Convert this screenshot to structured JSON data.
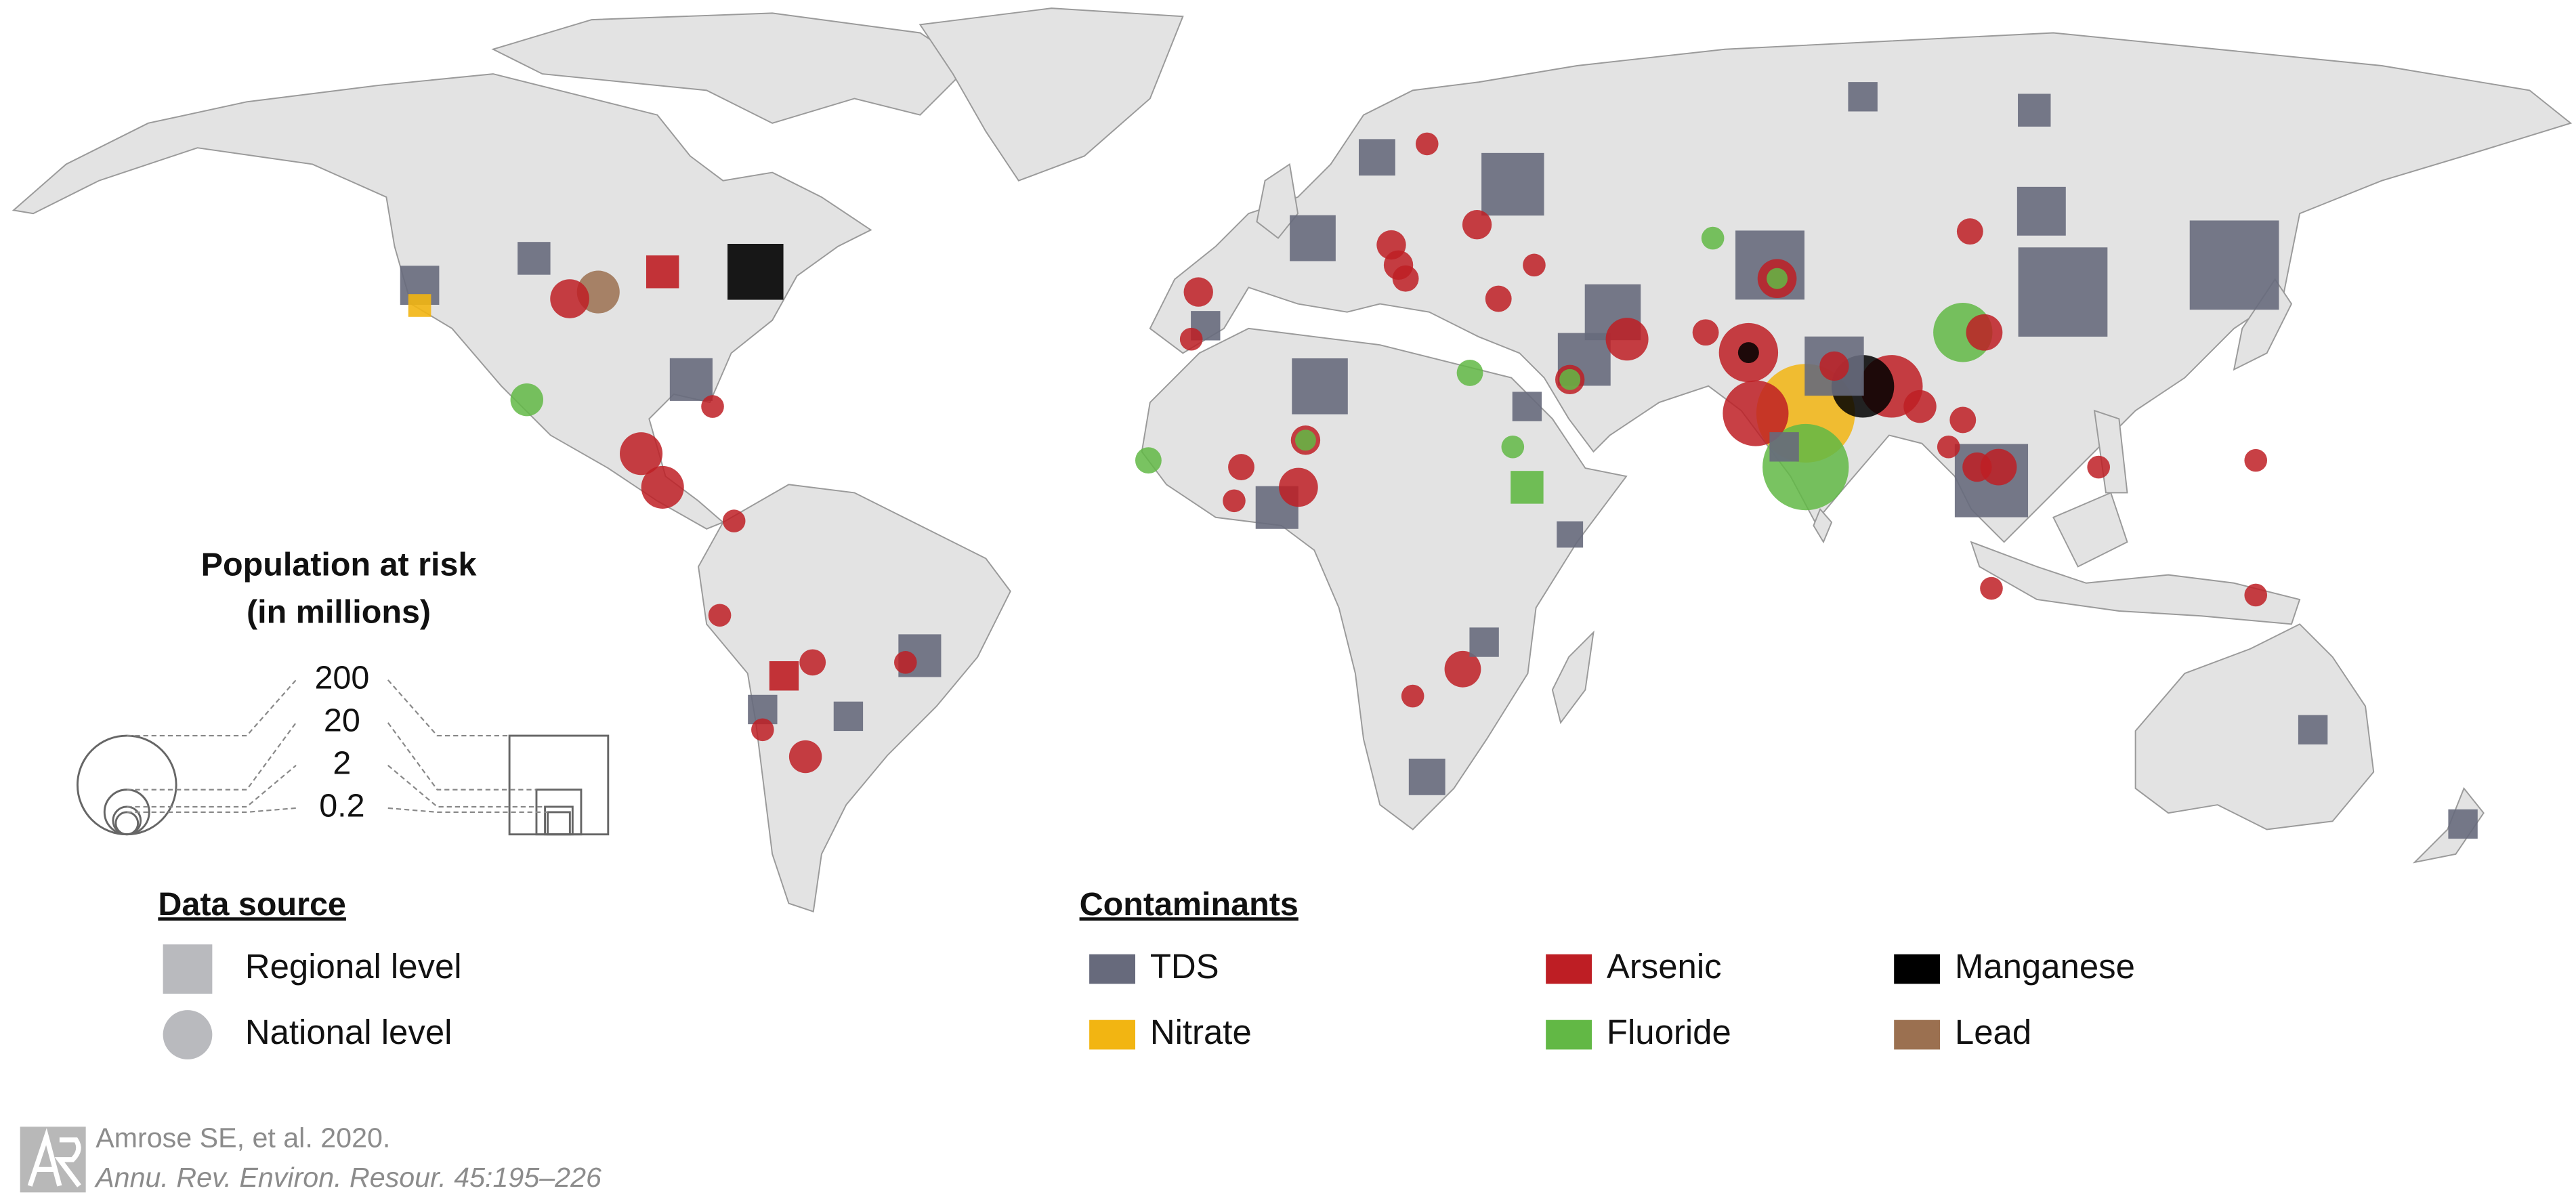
{
  "legend_size": {
    "title": [
      "Population at risk",
      "(in millions)"
    ],
    "values": [
      200,
      20,
      2,
      0.2
    ]
  },
  "data_source": {
    "title": "Data source",
    "items": [
      {
        "label": "Regional level",
        "shape": "square"
      },
      {
        "label": "National level",
        "shape": "circle"
      }
    ]
  },
  "contaminants": {
    "title": "Contaminants",
    "items": [
      {
        "name": "TDS",
        "color": "#676a7c"
      },
      {
        "name": "Nitrate",
        "color": "#f2b512"
      },
      {
        "name": "Arsenic",
        "color": "#be1e24"
      },
      {
        "name": "Fluoride",
        "color": "#62b845"
      },
      {
        "name": "Manganese",
        "color": "#000000"
      },
      {
        "name": "Lead",
        "color": "#9b7050"
      }
    ]
  },
  "citation": {
    "authors": "Amrose SE, et al. 2020.",
    "journal": "Annu. Rev. Environ. Resour. 45:195–226"
  },
  "markers": [
    {
      "contaminant": "TDS",
      "source": "Regional level",
      "lon": -122,
      "lat": 43,
      "population": 12
    },
    {
      "contaminant": "Nitrate",
      "source": "Regional level",
      "lon": -122,
      "lat": 40,
      "population": 0.3
    },
    {
      "contaminant": "TDS",
      "source": "Regional level",
      "lon": -106,
      "lat": 47,
      "population": 5.5
    },
    {
      "contaminant": "Arsenic",
      "source": "Regional level",
      "lon": -88,
      "lat": 45,
      "population": 5.5
    },
    {
      "contaminant": "Manganese",
      "source": "Regional level",
      "lon": -75,
      "lat": 45,
      "population": 42
    },
    {
      "contaminant": "TDS",
      "source": "Regional level",
      "lon": -84,
      "lat": 29,
      "population": 17
    },
    {
      "contaminant": "Arsenic",
      "source": "Regional level",
      "lon": -71,
      "lat": -15,
      "population": 3
    },
    {
      "contaminant": "TDS",
      "source": "Regional level",
      "lon": -74,
      "lat": -20,
      "population": 3
    },
    {
      "contaminant": "TDS",
      "source": "Regional level",
      "lon": -62,
      "lat": -21,
      "population": 3
    },
    {
      "contaminant": "TDS",
      "source": "Regional level",
      "lon": -52,
      "lat": -12,
      "population": 17
    },
    {
      "contaminant": "TDS",
      "source": "Regional level",
      "lon": 3,
      "lat": 50,
      "population": 22
    },
    {
      "contaminant": "TDS",
      "source": "Regional level",
      "lon": 12,
      "lat": 62,
      "population": 9
    },
    {
      "contaminant": "TDS",
      "source": "Regional level",
      "lon": 31,
      "lat": 58,
      "population": 59
    },
    {
      "contaminant": "TDS",
      "source": "Regional level",
      "lon": -12,
      "lat": 37,
      "population": 3
    },
    {
      "contaminant": "TDS",
      "source": "Regional level",
      "lon": 4,
      "lat": 28,
      "population": 42
    },
    {
      "contaminant": "TDS",
      "source": "Regional level",
      "lon": -2,
      "lat": 10,
      "population": 17
    },
    {
      "contaminant": "TDS",
      "source": "Regional level",
      "lon": 33,
      "lat": 25,
      "population": 3
    },
    {
      "contaminant": "Fluoride",
      "source": "Regional level",
      "lon": 33,
      "lat": 13,
      "population": 5.5
    },
    {
      "contaminant": "TDS",
      "source": "Regional level",
      "lon": 39,
      "lat": 6,
      "population": 1.4
    },
    {
      "contaminant": "TDS",
      "source": "Regional level",
      "lon": 27,
      "lat": -10,
      "population": 3
    },
    {
      "contaminant": "TDS",
      "source": "Regional level",
      "lon": 19,
      "lat": -30,
      "population": 9
    },
    {
      "contaminant": "TDS",
      "source": "Regional level",
      "lon": 45,
      "lat": 39,
      "population": 42
    },
    {
      "contaminant": "TDS",
      "source": "Regional level",
      "lon": 41,
      "lat": 32,
      "population": 35
    },
    {
      "contaminant": "TDS",
      "source": "Regional level",
      "lon": 67,
      "lat": 46,
      "population": 78
    },
    {
      "contaminant": "TDS",
      "source": "Regional level",
      "lon": 76,
      "lat": 31,
      "population": 50
    },
    {
      "contaminant": "TDS",
      "source": "Regional level",
      "lon": 80,
      "lat": 71,
      "population": 3
    },
    {
      "contaminant": "TDS",
      "source": "Regional level",
      "lon": 104,
      "lat": 69,
      "population": 5.5
    },
    {
      "contaminant": "TDS",
      "source": "Regional level",
      "lon": 105,
      "lat": 54,
      "population": 27
    },
    {
      "contaminant": "TDS",
      "source": "Regional level",
      "lon": 108,
      "lat": 42,
      "population": 155
    },
    {
      "contaminant": "TDS",
      "source": "Regional level",
      "lon": 132,
      "lat": 46,
      "population": 155
    },
    {
      "contaminant": "TDS",
      "source": "Regional level",
      "lon": 98,
      "lat": 14,
      "population": 92
    },
    {
      "contaminant": "TDS",
      "source": "Regional level",
      "lon": 143,
      "lat": -23,
      "population": 3
    },
    {
      "contaminant": "TDS",
      "source": "Regional level",
      "lon": 164,
      "lat": -37,
      "population": 3
    },
    {
      "contaminant": "TDS",
      "source": "Regional level",
      "lon": 69,
      "lat": 19,
      "population": 3
    },
    {
      "contaminant": "Arsenic",
      "source": "National level",
      "lon": -101,
      "lat": 41,
      "population": 12
    },
    {
      "contaminant": "Arsenic",
      "source": "National level",
      "lon": -91,
      "lat": 18,
      "population": 17
    },
    {
      "contaminant": "Arsenic",
      "source": "National level",
      "lon": -88,
      "lat": 13,
      "population": 17
    },
    {
      "contaminant": "Arsenic",
      "source": "National level",
      "lon": -81,
      "lat": 25,
      "population": 0.3
    },
    {
      "contaminant": "Arsenic",
      "source": "National level",
      "lon": -78,
      "lat": 8,
      "population": 0.3
    },
    {
      "contaminant": "Arsenic",
      "source": "National level",
      "lon": -80,
      "lat": -6,
      "population": 0.3
    },
    {
      "contaminant": "Arsenic",
      "source": "National level",
      "lon": -67,
      "lat": -13,
      "population": 1.4
    },
    {
      "contaminant": "Arsenic",
      "source": "National level",
      "lon": -74,
      "lat": -23,
      "population": 0.3
    },
    {
      "contaminant": "Arsenic",
      "source": "National level",
      "lon": -68,
      "lat": -27,
      "population": 5.5
    },
    {
      "contaminant": "Arsenic",
      "source": "National level",
      "lon": -54,
      "lat": -13,
      "population": 0.3
    },
    {
      "contaminant": "Arsenic",
      "source": "National level",
      "lon": -13,
      "lat": 42,
      "population": 3
    },
    {
      "contaminant": "Arsenic",
      "source": "National level",
      "lon": -14,
      "lat": 35,
      "population": 0.3
    },
    {
      "contaminant": "Arsenic",
      "source": "National level",
      "lon": -7,
      "lat": 16,
      "population": 1.4
    },
    {
      "contaminant": "Arsenic",
      "source": "National level",
      "lon": -8,
      "lat": 11,
      "population": 0.3
    },
    {
      "contaminant": "Arsenic",
      "source": "National level",
      "lon": 1,
      "lat": 13,
      "population": 12
    },
    {
      "contaminant": "Arsenic",
      "source": "National level",
      "lon": 2,
      "lat": 20,
      "population": 3
    },
    {
      "contaminant": "Arsenic",
      "source": "National level",
      "lon": 14,
      "lat": 49,
      "population": 3
    },
    {
      "contaminant": "Arsenic",
      "source": "National level",
      "lon": 15,
      "lat": 46,
      "population": 3
    },
    {
      "contaminant": "Arsenic",
      "source": "National level",
      "lon": 16,
      "lat": 44,
      "population": 1.4
    },
    {
      "contaminant": "Arsenic",
      "source": "National level",
      "lon": 19,
      "lat": 64,
      "population": 0.3
    },
    {
      "contaminant": "Arsenic",
      "source": "National level",
      "lon": 26,
      "lat": 52,
      "population": 3
    },
    {
      "contaminant": "Arsenic",
      "source": "National level",
      "lon": 29,
      "lat": 41,
      "population": 1.4
    },
    {
      "contaminant": "Arsenic",
      "source": "National level",
      "lon": 34,
      "lat": 46,
      "population": 0.3
    },
    {
      "contaminant": "Arsenic",
      "source": "National level",
      "lon": 24,
      "lat": -14,
      "population": 9
    },
    {
      "contaminant": "Arsenic",
      "source": "National level",
      "lon": 17,
      "lat": -18,
      "population": 0.3
    },
    {
      "contaminant": "Arsenic",
      "source": "National level",
      "lon": 47,
      "lat": 35,
      "population": 17
    },
    {
      "contaminant": "Arsenic",
      "source": "National level",
      "lon": 39,
      "lat": 29,
      "population": 3
    },
    {
      "contaminant": "Arsenic",
      "source": "National level",
      "lon": 58,
      "lat": 36,
      "population": 1.4
    },
    {
      "contaminant": "Arsenic",
      "source": "National level",
      "lon": 64,
      "lat": 33,
      "population": 50
    },
    {
      "contaminant": "Arsenic",
      "source": "National level",
      "lon": 65,
      "lat": 24,
      "population": 68
    },
    {
      "contaminant": "Arsenic",
      "source": "National level",
      "lon": 68,
      "lat": 44,
      "population": 12
    },
    {
      "contaminant": "Arsenic",
      "source": "National level",
      "lon": 76,
      "lat": 31,
      "population": 3
    },
    {
      "contaminant": "Arsenic",
      "source": "National level",
      "lon": 84,
      "lat": 28,
      "population": 59
    },
    {
      "contaminant": "Arsenic",
      "source": "National level",
      "lon": 88,
      "lat": 25,
      "population": 5.5
    },
    {
      "contaminant": "Arsenic",
      "source": "National level",
      "lon": 94,
      "lat": 23,
      "population": 1.4
    },
    {
      "contaminant": "Arsenic",
      "source": "National level",
      "lon": 92,
      "lat": 19,
      "population": 0.3
    },
    {
      "contaminant": "Arsenic",
      "source": "National level",
      "lon": 96,
      "lat": 16,
      "population": 3
    },
    {
      "contaminant": "Arsenic",
      "source": "National level",
      "lon": 99,
      "lat": 16,
      "population": 9
    },
    {
      "contaminant": "Arsenic",
      "source": "National level",
      "lon": 95,
      "lat": 51,
      "population": 1.4
    },
    {
      "contaminant": "Arsenic",
      "source": "National level",
      "lon": 97,
      "lat": 36,
      "population": 9
    },
    {
      "contaminant": "Arsenic",
      "source": "National level",
      "lon": 113,
      "lat": 16,
      "population": 0.3
    },
    {
      "contaminant": "Arsenic",
      "source": "National level",
      "lon": 135,
      "lat": 17,
      "population": 0.3
    },
    {
      "contaminant": "Arsenic",
      "source": "National level",
      "lon": 98,
      "lat": -2,
      "population": 0.3
    },
    {
      "contaminant": "Arsenic",
      "source": "National level",
      "lon": 135,
      "lat": -3,
      "population": 0.3
    },
    {
      "contaminant": "Lead",
      "source": "National level",
      "lon": -97,
      "lat": 42,
      "population": 17
    },
    {
      "contaminant": "Fluoride",
      "source": "National level",
      "lon": -107,
      "lat": 26,
      "population": 5.5
    },
    {
      "contaminant": "Fluoride",
      "source": "National level",
      "lon": 59,
      "lat": 50,
      "population": 0.3
    },
    {
      "contaminant": "Fluoride",
      "source": "National level",
      "lon": 25,
      "lat": 30,
      "population": 1.4
    },
    {
      "contaminant": "Fluoride",
      "source": "National level",
      "lon": 31,
      "lat": 19,
      "population": 0.3
    },
    {
      "contaminant": "Fluoride",
      "source": "National level",
      "lon": -20,
      "lat": 17,
      "population": 1.4
    },
    {
      "contaminant": "Fluoride",
      "source": "National level",
      "lon": 2,
      "lat": 20,
      "population": 0.05
    },
    {
      "contaminant": "Fluoride",
      "source": "National level",
      "lon": 68,
      "lat": 44,
      "population": 0.05
    },
    {
      "contaminant": "Fluoride",
      "source": "National level",
      "lon": 94,
      "lat": 36,
      "population": 50
    },
    {
      "contaminant": "Fluoride",
      "source": "National level",
      "lon": 72,
      "lat": 16,
      "population": 142
    },
    {
      "contaminant": "Fluoride",
      "source": "National level",
      "lon": 39,
      "lat": 29,
      "population": 0.05
    },
    {
      "contaminant": "Nitrate",
      "source": "National level",
      "lon": 72,
      "lat": 24,
      "population": 200
    },
    {
      "contaminant": "Manganese",
      "source": "National level",
      "lon": 80,
      "lat": 28,
      "population": 59
    },
    {
      "contaminant": "Manganese",
      "source": "National level",
      "lon": 64,
      "lat": 33,
      "population": 0.05
    }
  ]
}
